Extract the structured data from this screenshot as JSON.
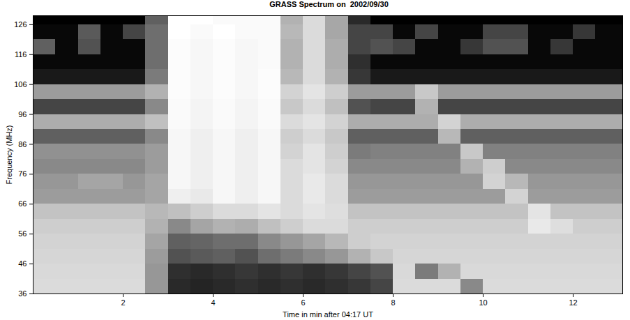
{
  "chart_data": {
    "type": "heatmap",
    "title": "GRASS Spectrum on  2002/09/30",
    "x_label": "Time in min after 04:17 UT",
    "y_label": "Frequency (MHz)",
    "xlim": [
      0,
      13.1
    ],
    "ylim": [
      36,
      129
    ],
    "xticks": [
      2,
      4,
      6,
      8,
      10,
      12
    ],
    "yticks": [
      36,
      46,
      56,
      66,
      76,
      86,
      96,
      106,
      116,
      126
    ],
    "x_edges": [
      0,
      0.5,
      1,
      1.5,
      2,
      2.5,
      3,
      3.5,
      4,
      4.5,
      5,
      5.5,
      6,
      6.5,
      7,
      7.5,
      8,
      8.5,
      9,
      9.5,
      10,
      10.5,
      11,
      11.5,
      12,
      12.5,
      13,
      13.1
    ],
    "y_edges": [
      36,
      41,
      46,
      51,
      56,
      61,
      66,
      71,
      76,
      81,
      86,
      91,
      96,
      101,
      106,
      111,
      116,
      121,
      126,
      129
    ],
    "values": [
      [
        85,
        85,
        85,
        85,
        85,
        60,
        20,
        18,
        20,
        22,
        20,
        22,
        20,
        22,
        25,
        30,
        85,
        85,
        85,
        55,
        85,
        85,
        85,
        85,
        85,
        85,
        85
      ],
      [
        84,
        84,
        84,
        84,
        84,
        60,
        22,
        20,
        22,
        25,
        22,
        25,
        22,
        25,
        30,
        35,
        84,
        50,
        70,
        84,
        84,
        84,
        84,
        84,
        84,
        84,
        84
      ],
      [
        83,
        83,
        83,
        83,
        83,
        62,
        35,
        38,
        40,
        35,
        45,
        50,
        55,
        60,
        70,
        78,
        83,
        83,
        83,
        83,
        83,
        83,
        83,
        83,
        83,
        83,
        83
      ],
      [
        82,
        82,
        82,
        82,
        82,
        65,
        40,
        42,
        45,
        45,
        55,
        60,
        65,
        72,
        80,
        82,
        82,
        82,
        82,
        82,
        82,
        82,
        82,
        82,
        82,
        82,
        82
      ],
      [
        80,
        80,
        80,
        80,
        80,
        70,
        55,
        65,
        70,
        68,
        75,
        80,
        85,
        85,
        80,
        80,
        80,
        80,
        80,
        80,
        80,
        80,
        90,
        86,
        80,
        80,
        80
      ],
      [
        76,
        76,
        76,
        76,
        76,
        72,
        75,
        80,
        85,
        85,
        88,
        85,
        88,
        86,
        76,
        76,
        76,
        76,
        76,
        76,
        76,
        76,
        88,
        76,
        76,
        76,
        76
      ],
      [
        62,
        62,
        62,
        62,
        62,
        65,
        92,
        90,
        95,
        92,
        95,
        85,
        90,
        85,
        62,
        62,
        62,
        62,
        62,
        62,
        62,
        82,
        62,
        62,
        62,
        62,
        62
      ],
      [
        60,
        60,
        65,
        65,
        60,
        65,
        95,
        92,
        95,
        92,
        95,
        85,
        90,
        85,
        60,
        60,
        60,
        60,
        60,
        60,
        82,
        72,
        60,
        60,
        60,
        60,
        60
      ],
      [
        55,
        55,
        55,
        55,
        55,
        62,
        95,
        92,
        95,
        92,
        95,
        85,
        88,
        82,
        55,
        55,
        55,
        55,
        55,
        70,
        80,
        55,
        55,
        55,
        55,
        55,
        55
      ],
      [
        58,
        58,
        58,
        58,
        58,
        62,
        95,
        92,
        95,
        92,
        95,
        82,
        88,
        80,
        50,
        52,
        52,
        52,
        52,
        78,
        52,
        52,
        52,
        52,
        52,
        52,
        52
      ],
      [
        40,
        40,
        40,
        40,
        40,
        55,
        95,
        92,
        95,
        92,
        95,
        80,
        85,
        78,
        40,
        40,
        40,
        40,
        72,
        40,
        40,
        40,
        40,
        40,
        40,
        40,
        40
      ],
      [
        68,
        68,
        68,
        68,
        68,
        75,
        96,
        94,
        96,
        94,
        96,
        85,
        88,
        82,
        68,
        68,
        68,
        68,
        82,
        68,
        68,
        68,
        68,
        68,
        68,
        68,
        68
      ],
      [
        30,
        30,
        30,
        30,
        30,
        55,
        96,
        94,
        96,
        94,
        96,
        78,
        85,
        75,
        35,
        30,
        30,
        70,
        30,
        30,
        30,
        30,
        30,
        30,
        30,
        30,
        30
      ],
      [
        62,
        62,
        62,
        62,
        62,
        70,
        97,
        95,
        97,
        95,
        97,
        82,
        88,
        80,
        62,
        62,
        62,
        78,
        62,
        62,
        62,
        62,
        62,
        62,
        62,
        62,
        62
      ],
      [
        14,
        14,
        14,
        14,
        14,
        50,
        97,
        95,
        97,
        95,
        97,
        72,
        85,
        70,
        25,
        14,
        14,
        14,
        14,
        14,
        14,
        14,
        14,
        14,
        14,
        14,
        14
      ],
      [
        8,
        8,
        8,
        8,
        8,
        45,
        97,
        95,
        97,
        95,
        96,
        70,
        85,
        68,
        22,
        8,
        8,
        8,
        8,
        8,
        8,
        8,
        8,
        8,
        8,
        8,
        8
      ],
      [
        40,
        8,
        35,
        8,
        8,
        45,
        97,
        95,
        97,
        95,
        96,
        70,
        85,
        68,
        30,
        35,
        30,
        8,
        8,
        25,
        35,
        35,
        8,
        25,
        8,
        8,
        8
      ],
      [
        8,
        8,
        38,
        8,
        30,
        45,
        98,
        96,
        98,
        96,
        96,
        72,
        85,
        66,
        30,
        30,
        8,
        30,
        8,
        8,
        30,
        30,
        8,
        8,
        25,
        8,
        8
      ],
      [
        5,
        5,
        5,
        5,
        5,
        40,
        98,
        98,
        96,
        96,
        96,
        70,
        85,
        66,
        20,
        5,
        5,
        5,
        5,
        5,
        5,
        5,
        5,
        5,
        5,
        5,
        5
      ]
    ]
  }
}
